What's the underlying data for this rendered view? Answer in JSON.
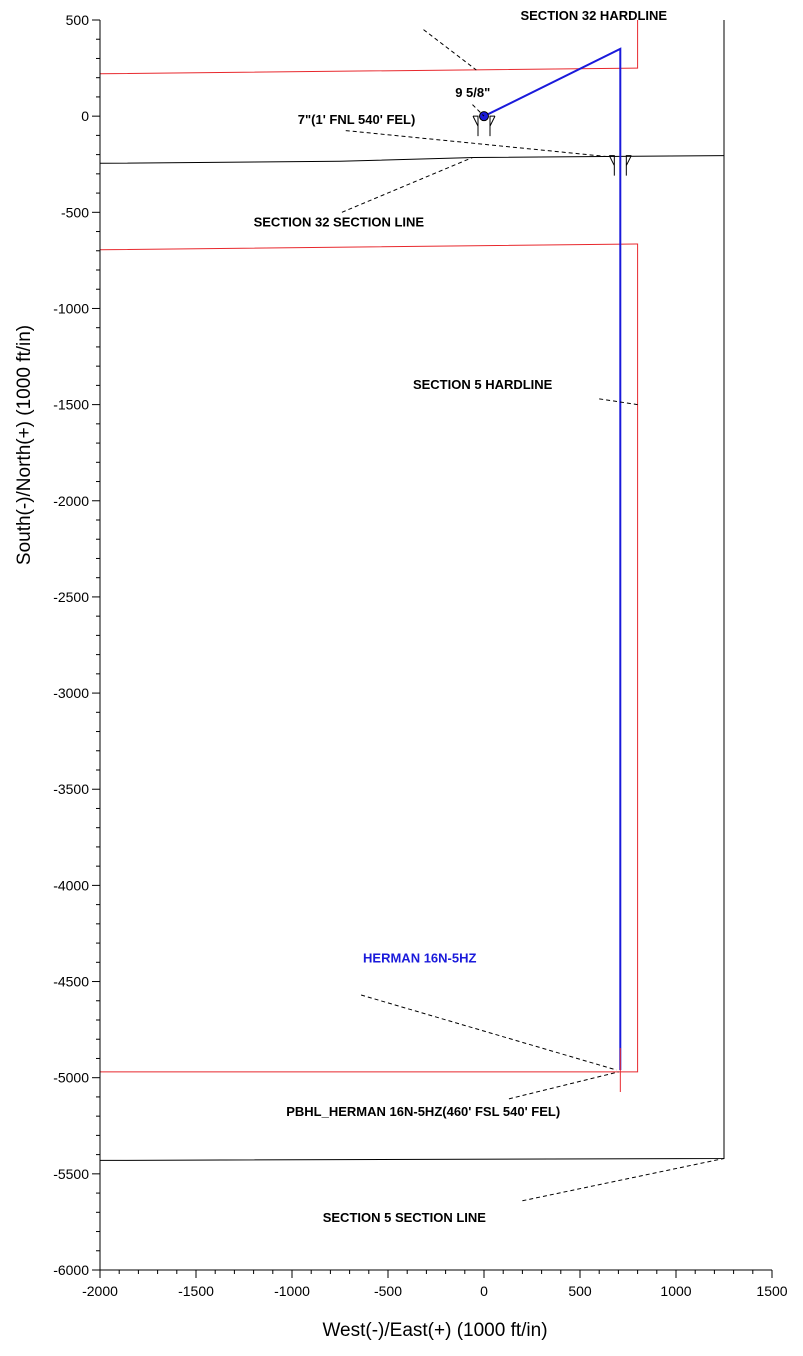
{
  "chart_data": {
    "type": "line",
    "xlabel": "West(-)/East(+) (1000 ft/in)",
    "ylabel": "South(-)/North(+) (1000 ft/in)",
    "xlim": [
      -2000,
      1500
    ],
    "ylim": [
      -6000,
      500
    ],
    "x_ticks": [
      -2000,
      -1500,
      -1000,
      -500,
      0,
      500,
      1000,
      1500
    ],
    "y_ticks": [
      500,
      0,
      -500,
      -1000,
      -1500,
      -2000,
      -2500,
      -3000,
      -3500,
      -4000,
      -4500,
      -5000,
      -5500,
      -6000
    ],
    "x_tick_labels": [
      "-2000",
      "-1500",
      "-1000",
      "-500",
      "0",
      "500",
      "1000",
      "1500"
    ],
    "y_tick_labels": [
      "500",
      "0",
      "-500",
      "-1000",
      "-1500",
      "-2000",
      "-2500",
      "-3000",
      "-3500",
      "-4000",
      "-4500",
      "-5000",
      "-5500",
      "-6000"
    ],
    "grid": false,
    "colors": {
      "well": "#1a1adb",
      "hardline": "#e8282d",
      "section_line": "#000000",
      "leader": "#000000"
    },
    "series": [
      {
        "name": "HERMAN 16N-5HZ",
        "color": "#1a1adb",
        "points": [
          [
            0,
            0
          ],
          [
            710,
            350
          ],
          [
            710,
            -4960
          ]
        ]
      }
    ],
    "hardlines": [
      {
        "label": "SECTION 32 HARDLINE",
        "points": [
          [
            -2000,
            220
          ],
          [
            800,
            250
          ],
          [
            800,
            500
          ]
        ]
      },
      {
        "label": "SECTION 5 HARDLINE",
        "points": [
          [
            -2000,
            -695
          ],
          [
            800,
            -665
          ],
          [
            800,
            -4970
          ],
          [
            -2000,
            -4970
          ]
        ]
      }
    ],
    "section_lines": [
      {
        "label": "SECTION 32 SECTION LINE",
        "points": [
          [
            -2000,
            -245
          ],
          [
            -750,
            -235
          ],
          [
            -50,
            -215
          ],
          [
            1250,
            -205
          ]
        ]
      },
      {
        "label": "SECTION 5 SECTION LINE",
        "points": [
          [
            -2000,
            -5430
          ],
          [
            1250,
            -5420
          ],
          [
            1250,
            500
          ]
        ]
      }
    ],
    "markers": [
      {
        "label": "9 5/8\"",
        "x": 0,
        "y": 0,
        "kind": "casing"
      },
      {
        "label": "7\"(1' FNL 540' FEL)",
        "x": 710,
        "y": -205,
        "kind": "casing"
      },
      {
        "label": "PBHL_HERMAN 16N-5HZ(460' FSL 540' FEL)",
        "x": 710,
        "y": -4960,
        "kind": "target"
      }
    ],
    "annotations": [
      {
        "text": "SECTION 32 HARDLINE",
        "x": 190,
        "y": 500,
        "target": [
          -40,
          240
        ],
        "anchor": [
          -315,
          450
        ]
      },
      {
        "text": "9 5/8\"",
        "x": -150,
        "y": 100,
        "target": [
          0,
          0
        ],
        "anchor": [
          -60,
          60
        ]
      },
      {
        "text": "7\"(1' FNL 540' FEL)",
        "x": -970,
        "y": -40,
        "target": [
          640,
          -210
        ],
        "anchor": [
          -720,
          -75
        ]
      },
      {
        "text": "SECTION 32 SECTION LINE",
        "x": -1200,
        "y": -575,
        "target": [
          -60,
          -215
        ],
        "anchor": [
          -740,
          -500
        ]
      },
      {
        "text": "SECTION 5 HARDLINE",
        "x": -370,
        "y": -1420,
        "target": [
          800,
          -1500
        ],
        "anchor": [
          600,
          -1470
        ]
      },
      {
        "text": "HERMAN 16N-5HZ",
        "x": -630,
        "y": -4400,
        "target": [
          690,
          -4960
        ],
        "anchor": [
          -640,
          -4570
        ],
        "blue": true
      },
      {
        "text": "PBHL_HERMAN 16N-5HZ(460' FSL 540' FEL)",
        "x": -1030,
        "y": -5200,
        "target": [
          700,
          -4970
        ],
        "anchor": [
          130,
          -5110
        ]
      },
      {
        "text": "SECTION 5 SECTION LINE",
        "x": -840,
        "y": -5750,
        "target": [
          1250,
          -5420
        ],
        "anchor": [
          200,
          -5640
        ]
      }
    ]
  }
}
